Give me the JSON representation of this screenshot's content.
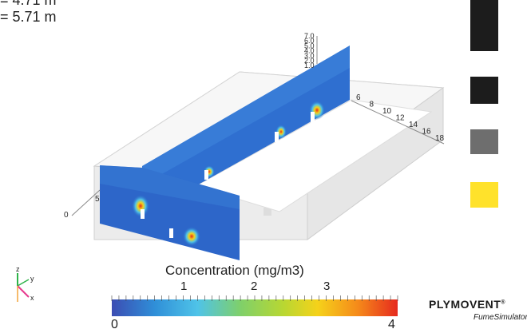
{
  "dimensions": {
    "line1": "= 4.71 m",
    "line2": "= 5.71 m"
  },
  "model_axis_ticks": {
    "vertical": [
      "7.0",
      "6.0",
      "5.0",
      "4.0",
      "3.0",
      "2.0",
      "1.0"
    ],
    "length": [
      "6",
      "8",
      "10",
      "12",
      "14",
      "16",
      "18"
    ],
    "front": [
      "0",
      "5"
    ]
  },
  "orientation_axes": {
    "z": "z",
    "y": "y",
    "x": "x"
  },
  "legend_swatches": [
    {
      "color": "#1c1c1c"
    },
    {
      "color": "#1c1c1c"
    },
    {
      "color": "#6e6e6e"
    },
    {
      "color": "#ffe22b"
    }
  ],
  "colorbar": {
    "title": "Concentration (mg/m3)",
    "min_label": "0",
    "max_label": "4",
    "tick_labels": [
      "1",
      "2",
      "3"
    ],
    "range": [
      0,
      4
    ],
    "colormap": [
      "#3c4db3",
      "#2f8fd8",
      "#4fc3e8",
      "#7fd06a",
      "#b8d732",
      "#f5d21a",
      "#f58a1a",
      "#e62a1e"
    ]
  },
  "logo": {
    "brand": "PLYMOVENT",
    "registered": "®",
    "product": "FumeSimulator"
  }
}
